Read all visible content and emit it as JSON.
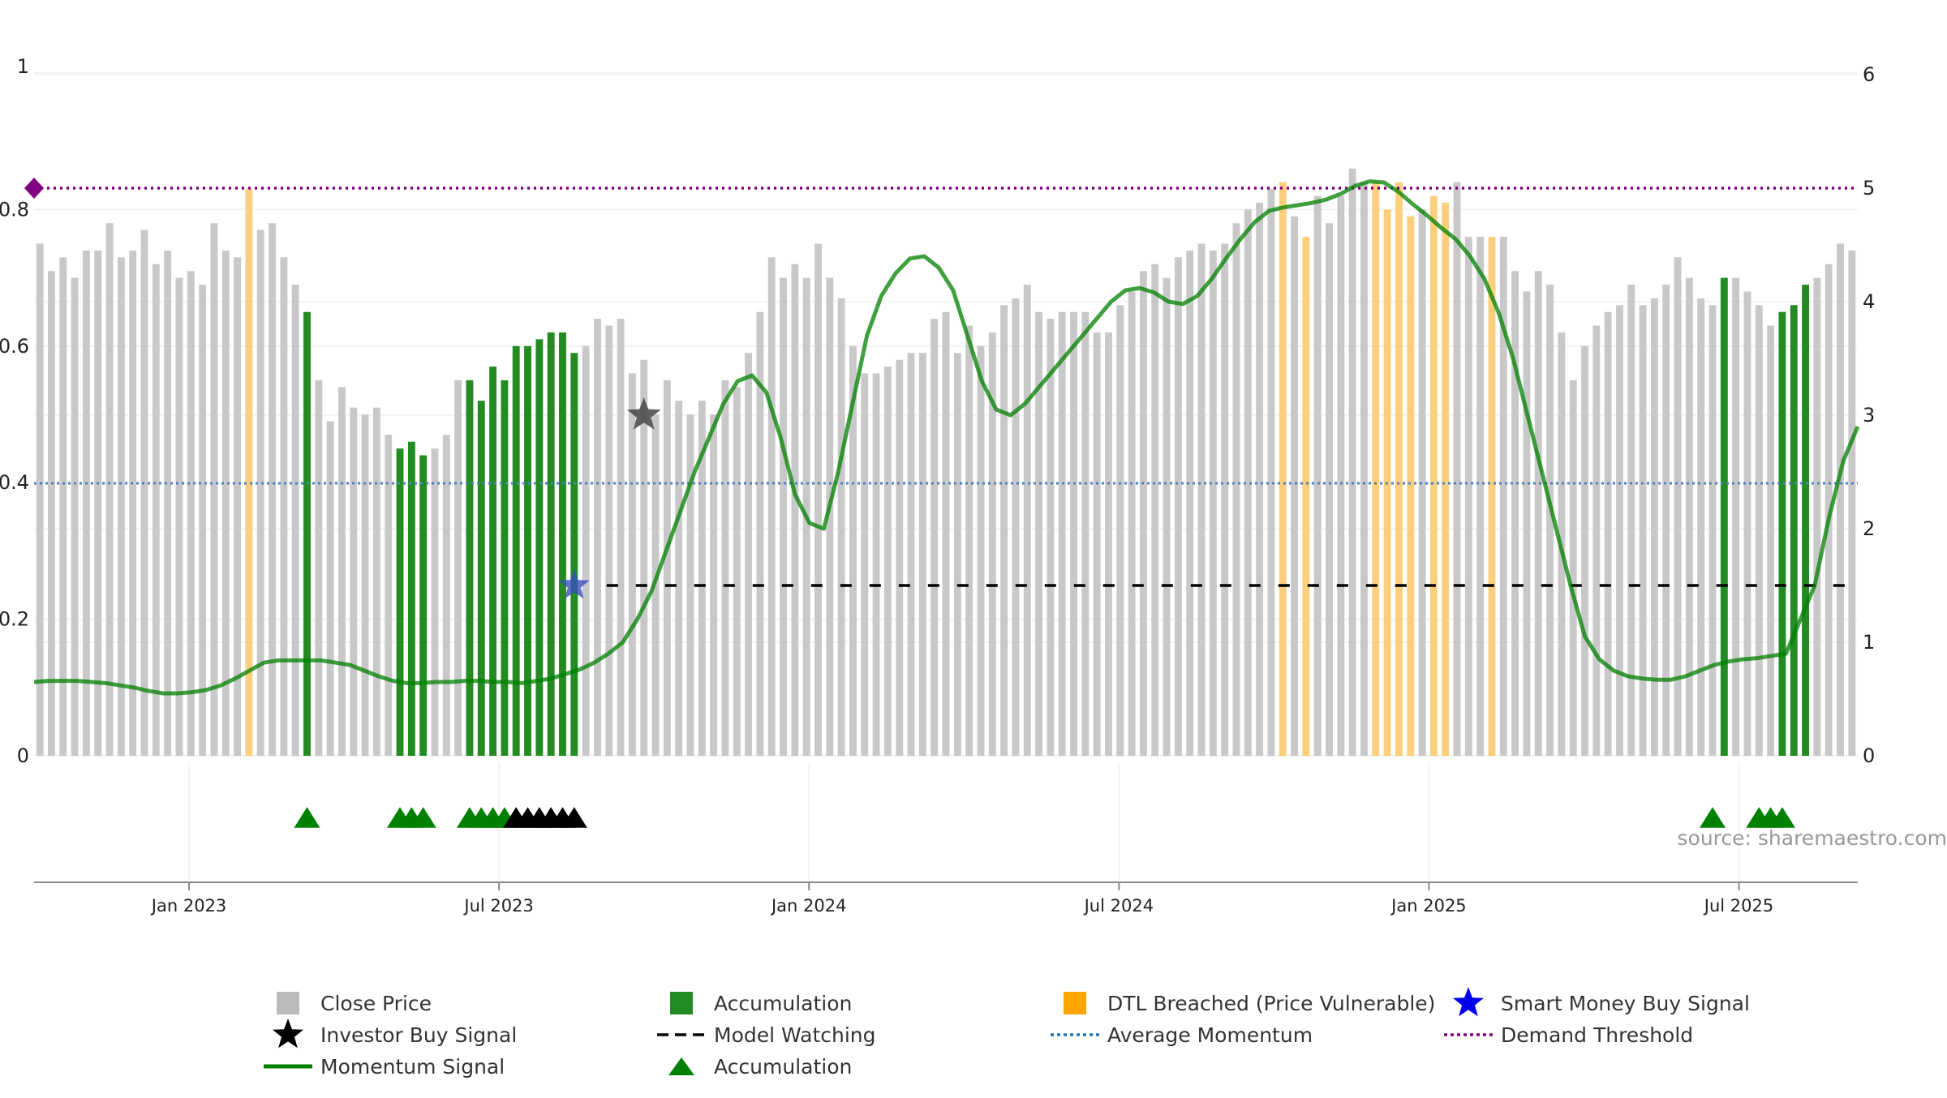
{
  "source_text": "source: sharemaestro.com",
  "legend": [
    {
      "label": "Close Price",
      "symbol": "square",
      "color": "#bbbbbb"
    },
    {
      "label": "Accumulation",
      "symbol": "square",
      "color": "#228b22"
    },
    {
      "label": "DTL Breached (Price Vulnerable)",
      "symbol": "square",
      "color": "#ffa500"
    },
    {
      "label": "Smart Money Buy Signal",
      "symbol": "star",
      "color": "#0000ee"
    },
    {
      "label": "Investor Buy Signal",
      "symbol": "star",
      "color": "#000000"
    },
    {
      "label": "Model Watching",
      "symbol": "dash",
      "color": "#000000"
    },
    {
      "label": "Average Momentum",
      "symbol": "dot",
      "color": "#1f77b4"
    },
    {
      "label": "Demand Threshold",
      "symbol": "dot",
      "color": "#800080"
    },
    {
      "label": "Momentum Signal",
      "symbol": "line",
      "color": "#008000"
    },
    {
      "label": "Accumulation",
      "symbol": "triangle",
      "color": "#008000"
    }
  ],
  "chart_data": {
    "type": "bar",
    "title": "",
    "xlabel": "",
    "ylabel": "",
    "left_axis": {
      "range": [
        0,
        1
      ],
      "ticks": [
        "0",
        "0.2",
        "0.4",
        "0.6",
        "0.8",
        "1"
      ]
    },
    "right_axis": {
      "range": [
        0,
        6
      ],
      "ticks": [
        "0",
        "1",
        "2",
        "3",
        "4",
        "5",
        "6"
      ]
    },
    "x_axis": {
      "start": "2022-10",
      "end": "2025-09",
      "ticks": [
        "Jan 2023",
        "Jul 2023",
        "Jan 2024",
        "Jul 2024",
        "Jan 2025",
        "Jul 2025"
      ]
    },
    "grid": true,
    "legend_position": "bottom",
    "colors": {
      "close": "#c8c8c8",
      "accumulation": "#228b22",
      "dtl": "#fbcf7c",
      "momentum": "#008000",
      "average": "#4f81bd",
      "threshold": "#800080",
      "watching": "#000000"
    },
    "close_price": [
      0.75,
      0.71,
      0.73,
      0.7,
      0.74,
      0.74,
      0.78,
      0.73,
      0.74,
      0.77,
      0.72,
      0.74,
      0.7,
      0.71,
      0.69,
      0.78,
      0.74,
      0.73,
      0.83,
      0.77,
      0.78,
      0.73,
      0.69,
      0.65,
      0.55,
      0.49,
      0.54,
      0.51,
      0.5,
      0.51,
      0.47,
      0.45,
      0.46,
      0.44,
      0.45,
      0.47,
      0.55,
      0.55,
      0.52,
      0.57,
      0.55,
      0.6,
      0.6,
      0.61,
      0.62,
      0.62,
      0.59,
      0.6,
      0.64,
      0.63,
      0.64,
      0.56,
      0.58,
      0.5,
      0.55,
      0.52,
      0.5,
      0.52,
      0.5,
      0.55,
      0.54,
      0.59,
      0.65,
      0.73,
      0.7,
      0.72,
      0.7,
      0.75,
      0.7,
      0.67,
      0.6,
      0.56,
      0.56,
      0.57,
      0.58,
      0.59,
      0.59,
      0.64,
      0.65,
      0.59,
      0.63,
      0.6,
      0.62,
      0.66,
      0.67,
      0.69,
      0.65,
      0.64,
      0.65,
      0.65,
      0.65,
      0.62,
      0.62,
      0.66,
      0.68,
      0.71,
      0.72,
      0.7,
      0.73,
      0.74,
      0.75,
      0.74,
      0.75,
      0.78,
      0.8,
      0.81,
      0.83,
      0.84,
      0.79,
      0.76,
      0.82,
      0.78,
      0.82,
      0.86,
      0.84,
      0.84,
      0.8,
      0.84,
      0.79,
      0.8,
      0.82,
      0.81,
      0.84,
      0.76,
      0.76,
      0.76,
      0.76,
      0.71,
      0.68,
      0.71,
      0.69,
      0.62,
      0.55,
      0.6,
      0.63,
      0.65,
      0.66,
      0.69,
      0.66,
      0.67,
      0.69,
      0.73,
      0.7,
      0.67,
      0.66,
      0.7,
      0.7,
      0.68,
      0.66,
      0.63,
      0.65,
      0.66,
      0.69,
      0.7,
      0.72,
      0.75,
      0.74
    ],
    "bar_category": [
      "c",
      "c",
      "c",
      "c",
      "c",
      "c",
      "c",
      "c",
      "c",
      "c",
      "c",
      "c",
      "c",
      "c",
      "c",
      "c",
      "c",
      "c",
      "d",
      "c",
      "c",
      "c",
      "c",
      "a",
      "c",
      "c",
      "c",
      "c",
      "c",
      "c",
      "c",
      "a",
      "a",
      "a",
      "c",
      "c",
      "c",
      "a",
      "a",
      "a",
      "a",
      "a",
      "a",
      "a",
      "a",
      "a",
      "a",
      "c",
      "c",
      "c",
      "c",
      "c",
      "c",
      "c",
      "c",
      "c",
      "c",
      "c",
      "c",
      "c",
      "c",
      "c",
      "c",
      "c",
      "c",
      "c",
      "c",
      "c",
      "c",
      "c",
      "c",
      "c",
      "c",
      "c",
      "c",
      "c",
      "c",
      "c",
      "c",
      "c",
      "c",
      "c",
      "c",
      "c",
      "c",
      "c",
      "c",
      "c",
      "c",
      "c",
      "c",
      "c",
      "c",
      "c",
      "c",
      "c",
      "c",
      "c",
      "c",
      "c",
      "c",
      "c",
      "c",
      "c",
      "c",
      "c",
      "c",
      "d",
      "c",
      "d",
      "c",
      "c",
      "c",
      "c",
      "c",
      "d",
      "d",
      "d",
      "d",
      "c",
      "d",
      "d",
      "c",
      "c",
      "c",
      "d",
      "c",
      "c",
      "c",
      "c",
      "c",
      "c",
      "c",
      "c",
      "c",
      "c",
      "c",
      "c",
      "c",
      "c",
      "c",
      "c",
      "c",
      "c",
      "c",
      "a",
      "c",
      "c",
      "c",
      "c",
      "a",
      "a",
      "a",
      "c",
      "c",
      "c",
      "c",
      "c",
      "c",
      "c"
    ],
    "momentum_signal": [
      0.65,
      0.66,
      0.66,
      0.66,
      0.65,
      0.64,
      0.62,
      0.6,
      0.57,
      0.55,
      0.55,
      0.56,
      0.58,
      0.62,
      0.68,
      0.75,
      0.82,
      0.84,
      0.84,
      0.84,
      0.84,
      0.82,
      0.8,
      0.75,
      0.7,
      0.66,
      0.64,
      0.64,
      0.65,
      0.65,
      0.66,
      0.66,
      0.65,
      0.65,
      0.64,
      0.66,
      0.68,
      0.72,
      0.76,
      0.82,
      0.9,
      1.0,
      1.2,
      1.45,
      1.8,
      2.15,
      2.5,
      2.8,
      3.1,
      3.3,
      3.35,
      3.2,
      2.8,
      2.3,
      2.05,
      2.0,
      2.5,
      3.1,
      3.7,
      4.05,
      4.25,
      4.38,
      4.4,
      4.3,
      4.1,
      3.7,
      3.3,
      3.05,
      3.0,
      3.1,
      3.25,
      3.4,
      3.55,
      3.7,
      3.85,
      4.0,
      4.1,
      4.12,
      4.08,
      4.0,
      3.98,
      4.05,
      4.2,
      4.38,
      4.55,
      4.7,
      4.8,
      4.83,
      4.85,
      4.87,
      4.9,
      4.95,
      5.02,
      5.06,
      5.05,
      4.97,
      4.86,
      4.76,
      4.65,
      4.55,
      4.4,
      4.2,
      3.9,
      3.5,
      3.0,
      2.5,
      2.0,
      1.5,
      1.05,
      0.85,
      0.75,
      0.7,
      0.68,
      0.67,
      0.67,
      0.7,
      0.75,
      0.8,
      0.83,
      0.85,
      0.86,
      0.88,
      0.9,
      1.2,
      1.5,
      2.1,
      2.6,
      2.9
    ],
    "average_momentum": 2.4,
    "demand_threshold": 5.0,
    "model_watching_level": 1.5,
    "accumulation_triangle_indices": [
      23,
      31,
      32,
      33,
      37,
      38,
      39,
      40
    ],
    "investor_triangle_indices": [
      41,
      42,
      43,
      44,
      45,
      46
    ],
    "accumulation_triangle_indices_late": [
      144,
      148,
      149,
      150
    ],
    "smart_money_signals": [
      {
        "index": 46,
        "value": 1.5
      }
    ],
    "investor_signals": [
      {
        "index": 52,
        "value": 3.0
      }
    ]
  }
}
